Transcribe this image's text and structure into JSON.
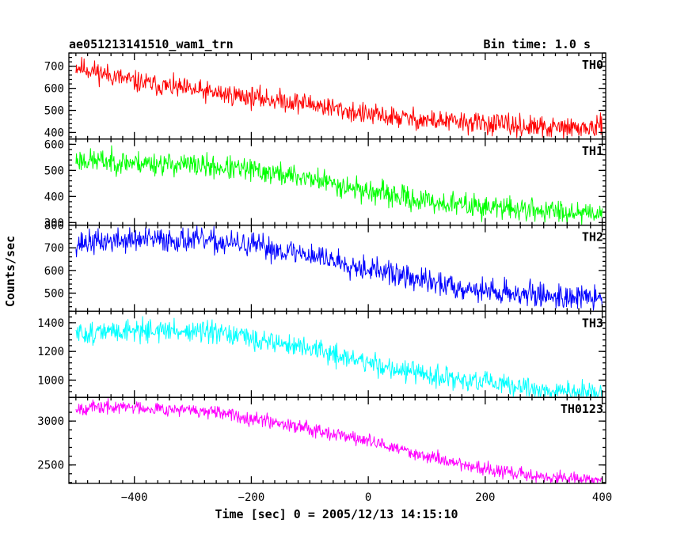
{
  "chart_data": {
    "type": "line",
    "title": "ae051213141510_wam1_trn",
    "bin_label": "Bin time: 1.0 s",
    "xlabel": "Time [sec] 0 = 2005/12/13 14:15:10",
    "ylabel": "Counts/sec",
    "xlim": [
      -512,
      406
    ],
    "x_ticks": [
      -400,
      -200,
      0,
      200,
      400
    ],
    "x_range": [
      -500,
      400
    ],
    "panels": [
      {
        "name": "TH0",
        "color": "#ff0000",
        "ylim": [
          370,
          760
        ],
        "y_ticks": [
          400,
          500,
          600,
          700
        ],
        "trend": [
          [
            -500,
            700
          ],
          [
            -400,
            630
          ],
          [
            -300,
            590
          ],
          [
            -200,
            560
          ],
          [
            -100,
            530
          ],
          [
            0,
            480
          ],
          [
            100,
            455
          ],
          [
            200,
            440
          ],
          [
            300,
            420
          ],
          [
            400,
            420
          ]
        ],
        "noise": 25,
        "seed": 11
      },
      {
        "name": "TH1",
        "color": "#00ff00",
        "ylim": [
          290,
          620
        ],
        "y_ticks": [
          300,
          400,
          500,
          600
        ],
        "trend": [
          [
            -500,
            540
          ],
          [
            -400,
            530
          ],
          [
            -300,
            520
          ],
          [
            -200,
            500
          ],
          [
            -100,
            470
          ],
          [
            0,
            420
          ],
          [
            100,
            380
          ],
          [
            200,
            360
          ],
          [
            300,
            345
          ],
          [
            400,
            340
          ]
        ],
        "noise": 23,
        "seed": 23
      },
      {
        "name": "TH2",
        "color": "#0000ff",
        "ylim": [
          420,
          800
        ],
        "y_ticks": [
          500,
          600,
          700,
          800
        ],
        "trend": [
          [
            -500,
            720
          ],
          [
            -400,
            735
          ],
          [
            -300,
            735
          ],
          [
            -200,
            710
          ],
          [
            -100,
            670
          ],
          [
            0,
            610
          ],
          [
            100,
            550
          ],
          [
            200,
            510
          ],
          [
            300,
            490
          ],
          [
            400,
            475
          ]
        ],
        "noise": 28,
        "seed": 37
      },
      {
        "name": "TH3",
        "color": "#00ffff",
        "ylim": [
          880,
          1480
        ],
        "y_ticks": [
          1000,
          1200,
          1400
        ],
        "trend": [
          [
            -500,
            1320
          ],
          [
            -400,
            1350
          ],
          [
            -300,
            1340
          ],
          [
            -200,
            1290
          ],
          [
            -100,
            1220
          ],
          [
            0,
            1120
          ],
          [
            100,
            1030
          ],
          [
            200,
            980
          ],
          [
            300,
            930
          ],
          [
            400,
            900
          ]
        ],
        "noise": 40,
        "seed": 51
      },
      {
        "name": "TH0123",
        "color": "#ff00ff",
        "ylim": [
          2290,
          3270
        ],
        "y_ticks": [
          2500,
          3000
        ],
        "trend": [
          [
            -500,
            3150
          ],
          [
            -400,
            3160
          ],
          [
            -300,
            3120
          ],
          [
            -200,
            3040
          ],
          [
            -100,
            2920
          ],
          [
            0,
            2770
          ],
          [
            100,
            2600
          ],
          [
            200,
            2450
          ],
          [
            300,
            2360
          ],
          [
            400,
            2330
          ]
        ],
        "noise": 40,
        "seed": 67
      }
    ]
  }
}
